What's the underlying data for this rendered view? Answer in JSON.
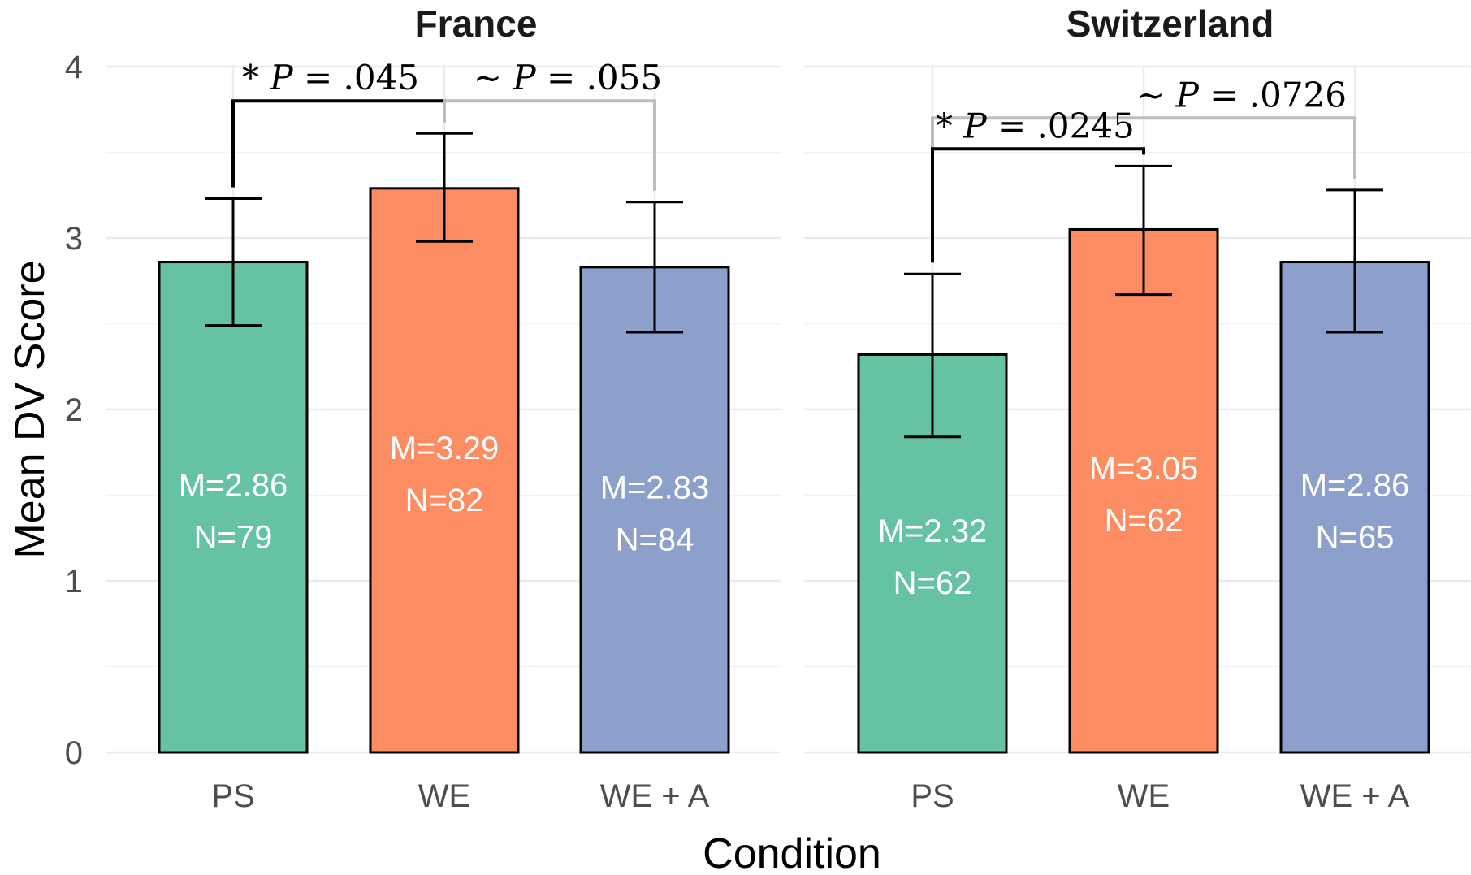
{
  "chart_data": {
    "type": "bar",
    "xlabel": "Condition",
    "ylabel": "Mean DV Score",
    "ylim": [
      0,
      4
    ],
    "yticks": [
      0,
      1,
      2,
      3,
      4
    ],
    "grid": true,
    "categories": [
      "PS",
      "WE",
      "WE + A"
    ],
    "colors": {
      "PS": "#66c2a5",
      "WE": "#fc8d62",
      "WE + A": "#8da0cb"
    },
    "panels": [
      {
        "title": "France",
        "bars": [
          {
            "category": "PS",
            "mean": 2.86,
            "n": 79,
            "err_low": 2.49,
            "err_high": 3.23,
            "label_m": "M=2.86",
            "label_n": "N=79"
          },
          {
            "category": "WE",
            "mean": 3.29,
            "n": 82,
            "err_low": 2.98,
            "err_high": 3.61,
            "label_m": "M=3.29",
            "label_n": "N=82"
          },
          {
            "category": "WE + A",
            "mean": 2.83,
            "n": 84,
            "err_low": 2.45,
            "err_high": 3.21,
            "label_m": "M=2.83",
            "label_n": "N=84"
          }
        ],
        "annotations": [
          {
            "from": "PS",
            "to": "WE",
            "symbol": "*",
            "p_label": "P",
            "p_value": "= .045",
            "color": "#000000",
            "level": 3.8
          },
          {
            "from": "WE",
            "to": "WE + A",
            "symbol": "~",
            "p_label": "P",
            "p_value": "= .055",
            "color": "#bdbdbd",
            "level": 3.8
          }
        ]
      },
      {
        "title": "Switzerland",
        "bars": [
          {
            "category": "PS",
            "mean": 2.32,
            "n": 62,
            "err_low": 1.84,
            "err_high": 2.79,
            "label_m": "M=2.32",
            "label_n": "N=62"
          },
          {
            "category": "WE",
            "mean": 3.05,
            "n": 62,
            "err_low": 2.67,
            "err_high": 3.42,
            "label_m": "M=3.05",
            "label_n": "N=62"
          },
          {
            "category": "WE + A",
            "mean": 2.86,
            "n": 65,
            "err_low": 2.45,
            "err_high": 3.28,
            "label_m": "M=2.86",
            "label_n": "N=65"
          }
        ],
        "annotations": [
          {
            "from": "PS",
            "to": "WE + A",
            "symbol": "~",
            "p_label": "P",
            "p_value": "= .0726",
            "color": "#bdbdbd",
            "level": 3.7
          },
          {
            "from": "PS",
            "to": "WE",
            "symbol": "*",
            "p_label": "P",
            "p_value": "= .0245",
            "color": "#000000",
            "level": 3.52
          }
        ]
      }
    ]
  }
}
